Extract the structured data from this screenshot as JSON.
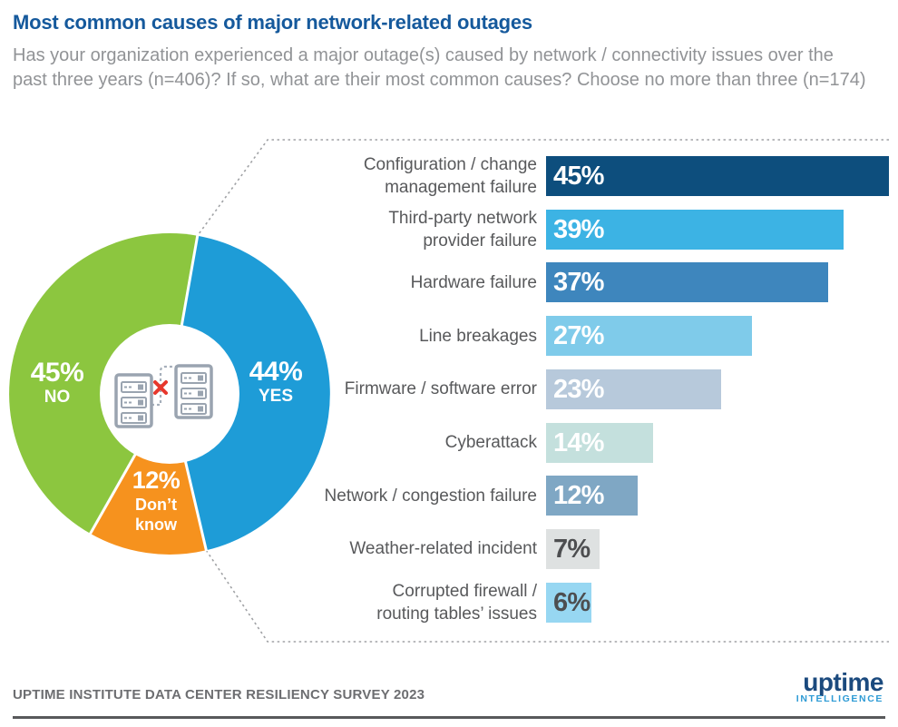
{
  "header": {
    "title": "Most common causes of major network-related outages",
    "subtitle": "Has your organization experienced a major outage(s) caused by network / connectivity issues over the past three years (n=406)? If so, what are their most common causes? Choose no more than three (n=174)"
  },
  "chart_data": [
    {
      "type": "pie",
      "subtype": "donut",
      "n": 406,
      "start_angle_deg": 10,
      "segments": [
        {
          "label": "YES",
          "value": 44,
          "pct_label": "44%",
          "label_lines": "YES",
          "color": "#1E9CD7"
        },
        {
          "label": "Don’t know",
          "value": 12,
          "pct_label": "12%",
          "label_lines": "Don’t\nknow",
          "color": "#F6921E"
        },
        {
          "label": "NO",
          "value": 45,
          "pct_label": "45%",
          "label_lines": "NO",
          "color": "#8CC63F"
        }
      ],
      "center_icon": "disconnected-servers"
    },
    {
      "type": "bar",
      "orientation": "horizontal",
      "n": 174,
      "categories": [
        "Configuration / change\nmanagement failure",
        "Third-party network\nprovider failure",
        "Hardware failure",
        "Line breakages",
        "Firmware / software error",
        "Cyberattack",
        "Network / congestion failure",
        "Weather-related incident",
        "Corrupted firewall /\nrouting tables’ issues"
      ],
      "values": [
        45,
        39,
        37,
        27,
        23,
        14,
        12,
        7,
        6
      ],
      "value_labels": [
        "45%",
        "39%",
        "37%",
        "27%",
        "23%",
        "14%",
        "12%",
        "7%",
        "6%"
      ],
      "bar_colors": [
        "#0D4E7D",
        "#3CB3E4",
        "#3E86BD",
        "#7FCBEA",
        "#B7C9DB",
        "#C4E0DD",
        "#7FA7C4",
        "#DEE1E1",
        "#97D7F2"
      ],
      "value_label_colors": [
        "#FFFFFF",
        "#FFFFFF",
        "#FFFFFF",
        "#FFFFFF",
        "#FFFFFF",
        "#FFFFFF",
        "#FFFFFF",
        "#4D4E50",
        "#4D4E50"
      ],
      "xlim": [
        0,
        47
      ],
      "grid": false,
      "legend": "none"
    }
  ],
  "footer": {
    "source": "UPTIME INSTITUTE DATA CENTER RESILIENCY SURVEY 2023",
    "logo_primary": "uptime",
    "logo_secondary": "INTELLIGENCE"
  },
  "colors": {
    "title": "#15599C",
    "subtitle": "#919396",
    "category_label": "#58595B",
    "callout_dots": "#A0A2A5",
    "footer_rule": "#58595B",
    "logo_navy": "#1B4A7E",
    "logo_blue": "#2E9BD5"
  }
}
